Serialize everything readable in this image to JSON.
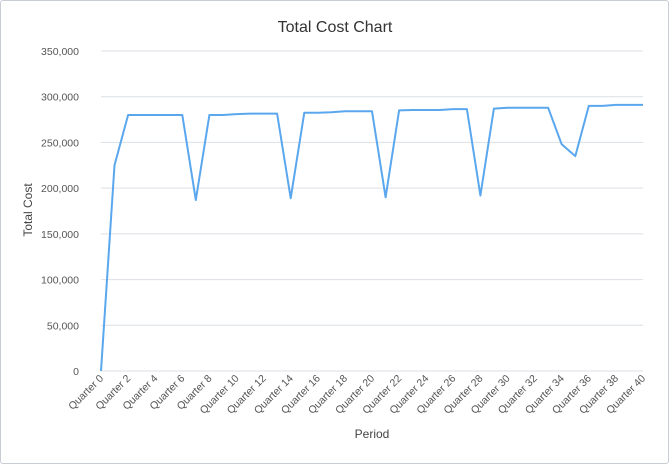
{
  "chart_data": {
    "type": "line",
    "title": "Total Cost Chart",
    "xlabel": "Period",
    "ylabel": "Total Cost",
    "ylim": [
      0,
      350000
    ],
    "yticks": [
      0,
      50000,
      100000,
      150000,
      200000,
      250000,
      300000,
      350000
    ],
    "ytick_labels": [
      "0",
      "50,000",
      "100,000",
      "150,000",
      "200,000",
      "250,000",
      "300,000",
      "350,000"
    ],
    "grid": "horizontal",
    "legend": "none",
    "line_color": "#5aa7ee",
    "categories": [
      "Quarter 0",
      "Quarter 1",
      "Quarter 2",
      "Quarter 3",
      "Quarter 4",
      "Quarter 5",
      "Quarter 6",
      "Quarter 7",
      "Quarter 8",
      "Quarter 9",
      "Quarter 10",
      "Quarter 11",
      "Quarter 12",
      "Quarter 13",
      "Quarter 14",
      "Quarter 15",
      "Quarter 16",
      "Quarter 17",
      "Quarter 18",
      "Quarter 19",
      "Quarter 20",
      "Quarter 21",
      "Quarter 22",
      "Quarter 23",
      "Quarter 24",
      "Quarter 25",
      "Quarter 26",
      "Quarter 27",
      "Quarter 28",
      "Quarter 29",
      "Quarter 30",
      "Quarter 31",
      "Quarter 32",
      "Quarter 33",
      "Quarter 34",
      "Quarter 35",
      "Quarter 36",
      "Quarter 37",
      "Quarter 38",
      "Quarter 39",
      "Quarter 40"
    ],
    "visible_tick_labels": [
      "Quarter 0",
      "Quarter 2",
      "Quarter 4",
      "Quarter 6",
      "Quarter 8",
      "Quarter 10",
      "Quarter 12",
      "Quarter 14",
      "Quarter 16",
      "Quarter 18",
      "Quarter 20",
      "Quarter 22",
      "Quarter 24",
      "Quarter 26",
      "Quarter 28",
      "Quarter 30",
      "Quarter 32",
      "Quarter 34",
      "Quarter 36",
      "Quarter 38",
      "Quarter 40"
    ],
    "series": [
      {
        "values": [
          0,
          225000,
          280000,
          280000,
          280000,
          280000,
          280000,
          187000,
          280000,
          280000,
          281000,
          281500,
          281500,
          281500,
          189000,
          282500,
          282500,
          283000,
          284000,
          284000,
          284000,
          190000,
          285000,
          285500,
          285500,
          285500,
          286500,
          286500,
          192000,
          287000,
          288000,
          288000,
          288000,
          288000,
          248000,
          235000,
          290000,
          290000,
          291000,
          291000,
          291000
        ]
      }
    ]
  }
}
